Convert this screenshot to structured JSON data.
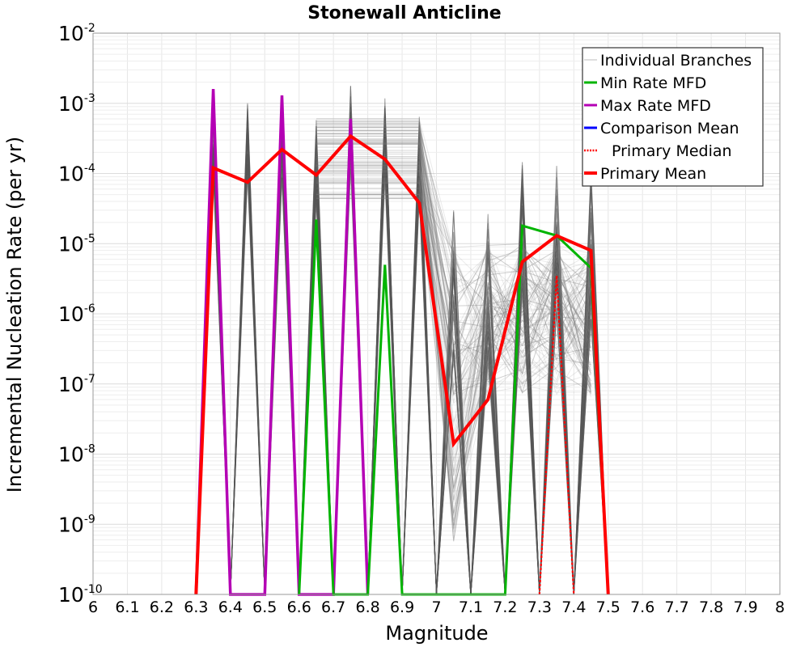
{
  "chart_data": {
    "type": "line",
    "title": "Stonewall Anticline",
    "xlabel": "Magnitude",
    "ylabel": "Incremental Nucleation Rate (per yr)",
    "xlim": [
      6,
      8
    ],
    "ylim": [
      1e-10,
      0.01
    ],
    "y_scale": "log",
    "grid": true,
    "x_ticks": [
      "6",
      "6.1",
      "6.2",
      "6.3",
      "6.4",
      "6.5",
      "6.6",
      "6.7",
      "6.8",
      "6.9",
      "7",
      "7.1",
      "7.2",
      "7.3",
      "7.4",
      "7.5",
      "7.6",
      "7.7",
      "7.8",
      "7.9",
      "8"
    ],
    "y_ticks": [
      {
        "base": "10",
        "exp": "-2"
      },
      {
        "base": "10",
        "exp": "-3"
      },
      {
        "base": "10",
        "exp": "-4"
      },
      {
        "base": "10",
        "exp": "-5"
      },
      {
        "base": "10",
        "exp": "-6"
      },
      {
        "base": "10",
        "exp": "-7"
      },
      {
        "base": "10",
        "exp": "-8"
      },
      {
        "base": "10",
        "exp": "-9"
      },
      {
        "base": "10",
        "exp": "-10"
      }
    ],
    "legend_position": "top-right",
    "legend": [
      {
        "label": "Individual Branches",
        "color": "#c8c8c8",
        "style": "thin"
      },
      {
        "label": "Min Rate MFD",
        "color": "#00b400",
        "style": "solid"
      },
      {
        "label": "Max Rate MFD",
        "color": "#b400b4",
        "style": "solid"
      },
      {
        "label": "Comparison Mean",
        "color": "#0000ff",
        "style": "solid"
      },
      {
        "label": "Primary Median",
        "color": "#ff0000",
        "style": "dotted"
      },
      {
        "label": "Primary Mean",
        "color": "#ff0000",
        "style": "thick"
      }
    ],
    "series": [
      {
        "name": "Max Rate MFD",
        "color": "#b400b4",
        "x": [
          6.3,
          6.35,
          6.4,
          6.5,
          6.55,
          6.6,
          6.7,
          6.75,
          6.8
        ],
        "y": [
          1e-10,
          0.0016,
          1e-10,
          1e-10,
          0.0013,
          1e-10,
          1e-10,
          0.0006,
          1e-10
        ]
      },
      {
        "name": "Min Rate MFD",
        "color": "#00b400",
        "x": [
          6.6,
          6.65,
          6.7,
          6.8,
          6.85,
          6.9,
          7.2,
          7.25,
          7.35,
          7.45,
          7.5
        ],
        "y": [
          1e-10,
          2.2e-05,
          1e-10,
          1e-10,
          5e-06,
          1e-10,
          1e-10,
          1.8e-05,
          1.3e-05,
          4.5e-06,
          1e-10
        ]
      },
      {
        "name": "Primary Mean",
        "color": "#ff0000",
        "x": [
          6.3,
          6.35,
          6.45,
          6.55,
          6.65,
          6.75,
          6.85,
          6.95,
          7.05,
          7.15,
          7.25,
          7.35,
          7.45,
          7.5
        ],
        "y": [
          1e-10,
          0.00012,
          7.5e-05,
          0.00022,
          9.5e-05,
          0.00034,
          0.00016,
          3.8e-05,
          1.4e-08,
          6e-08,
          5.5e-06,
          1.3e-05,
          8e-06,
          1e-10
        ]
      },
      {
        "name": "Primary Median",
        "color": "#ff0000",
        "x": [
          7.3,
          7.35,
          7.4
        ],
        "y": [
          1e-10,
          3.5e-06,
          1e-10
        ]
      }
    ],
    "branch_spikes": [
      {
        "x": 6.35,
        "peak": 0.0015
      },
      {
        "x": 6.45,
        "peak": 0.0013
      },
      {
        "x": 6.55,
        "peak": 0.0012
      },
      {
        "x": 6.65,
        "peak": 0.0006
      },
      {
        "x": 6.75,
        "peak": 0.0018
      },
      {
        "x": 6.85,
        "peak": 0.0012
      },
      {
        "x": 6.95,
        "peak": 0.0007
      },
      {
        "x": 7.05,
        "peak": 3.5e-05
      },
      {
        "x": 7.15,
        "peak": 3e-05
      },
      {
        "x": 7.25,
        "peak": 0.00018
      },
      {
        "x": 7.35,
        "peak": 0.00016
      },
      {
        "x": 7.45,
        "peak": 0.00012
      }
    ]
  }
}
